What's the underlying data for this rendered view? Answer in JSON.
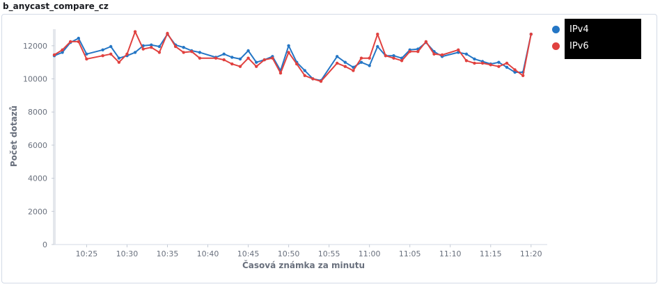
{
  "panel": {
    "title": "b_anycast_compare_cz"
  },
  "chart_data": {
    "type": "line",
    "title": "b_anycast_compare_cz",
    "xlabel": "Časová známka za minutu",
    "ylabel": "Počet dotazů",
    "ylim": [
      0,
      13000
    ],
    "yticks": [
      0,
      2000,
      4000,
      6000,
      8000,
      10000,
      12000
    ],
    "xlim": [
      "10:21",
      "10:21"
    ],
    "x_minute_range": [
      21,
      82
    ],
    "xticks": [
      "10:25",
      "10:30",
      "10:35",
      "10:40",
      "10:45",
      "10:50",
      "10:55",
      "11:00",
      "11:05",
      "11:10",
      "11:15",
      "11:20"
    ],
    "legend_position": "top-right",
    "series": [
      {
        "name": "IPv4",
        "color": "#2476c5",
        "x": [
          "10:21",
          "10:22",
          "10:23",
          "10:24",
          "10:25",
          "10:27",
          "10:28",
          "10:29",
          "10:30",
          "10:31",
          "10:32",
          "10:33",
          "10:34",
          "10:35",
          "10:36",
          "10:37",
          "10:38",
          "10:39",
          "10:41",
          "10:42",
          "10:43",
          "10:44",
          "10:45",
          "10:46",
          "10:47",
          "10:48",
          "10:49",
          "10:50",
          "10:51",
          "10:52",
          "10:53",
          "10:54",
          "10:56",
          "10:57",
          "10:58",
          "10:59",
          "11:00",
          "11:01",
          "11:02",
          "11:03",
          "11:04",
          "11:05",
          "11:06",
          "11:07",
          "11:08",
          "11:09",
          "11:11",
          "11:12",
          "11:13",
          "11:14",
          "11:15",
          "11:16",
          "11:17",
          "11:18",
          "11:19",
          "11:20"
        ],
        "values": [
          11400,
          11600,
          12200,
          12450,
          11500,
          11750,
          11950,
          11250,
          11400,
          11600,
          12000,
          12050,
          11950,
          12700,
          12050,
          11900,
          11700,
          11600,
          11300,
          11500,
          11300,
          11200,
          11700,
          11000,
          11150,
          11350,
          10500,
          12000,
          11000,
          10500,
          10000,
          9900,
          11350,
          11000,
          10700,
          11000,
          10800,
          11950,
          11400,
          11400,
          11250,
          11750,
          11800,
          12200,
          11650,
          11350,
          11600,
          11500,
          11200,
          11050,
          10900,
          11000,
          10700,
          10400,
          10400,
          12700
        ]
      },
      {
        "name": "IPv6",
        "color": "#e0413f",
        "x": [
          "10:21",
          "10:22",
          "10:23",
          "10:24",
          "10:25",
          "10:27",
          "10:28",
          "10:29",
          "10:30",
          "10:31",
          "10:32",
          "10:33",
          "10:34",
          "10:35",
          "10:36",
          "10:37",
          "10:38",
          "10:39",
          "10:41",
          "10:42",
          "10:43",
          "10:44",
          "10:45",
          "10:46",
          "10:47",
          "10:48",
          "10:49",
          "10:50",
          "10:51",
          "10:52",
          "10:53",
          "10:54",
          "10:56",
          "10:57",
          "10:58",
          "10:59",
          "11:00",
          "11:01",
          "11:02",
          "11:03",
          "11:04",
          "11:05",
          "11:06",
          "11:07",
          "11:08",
          "11:09",
          "11:11",
          "11:12",
          "11:13",
          "11:14",
          "11:15",
          "11:16",
          "11:17",
          "11:18",
          "11:19",
          "11:20"
        ],
        "values": [
          11450,
          11750,
          12250,
          12250,
          11200,
          11400,
          11500,
          11000,
          11500,
          12850,
          11800,
          11900,
          11600,
          12750,
          11950,
          11600,
          11650,
          11250,
          11250,
          11150,
          10900,
          10750,
          11250,
          10750,
          11150,
          11250,
          10350,
          11600,
          10900,
          10200,
          10000,
          9850,
          10950,
          10750,
          10500,
          11250,
          11250,
          12700,
          11400,
          11250,
          11100,
          11650,
          11650,
          12250,
          11500,
          11450,
          11750,
          11100,
          10950,
          10950,
          10850,
          10750,
          10950,
          10550,
          10200,
          12700
        ]
      }
    ]
  }
}
